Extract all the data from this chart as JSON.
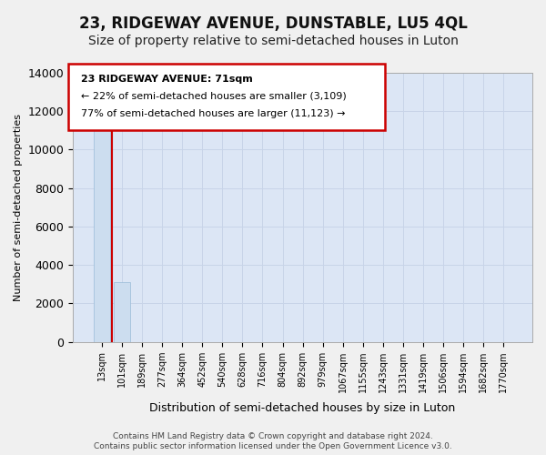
{
  "title": "23, RIDGEWAY AVENUE, DUNSTABLE, LU5 4QL",
  "subtitle": "Size of property relative to semi-detached houses in Luton",
  "xlabel": "Distribution of semi-detached houses by size in Luton",
  "ylabel": "Number of semi-detached properties",
  "footer1": "Contains HM Land Registry data © Crown copyright and database right 2024.",
  "footer2": "Contains public sector information licensed under the Open Government Licence v3.0.",
  "bar_values": [
    11500,
    3109,
    0,
    0,
    0,
    0,
    0,
    0,
    0,
    0,
    0,
    0,
    0,
    0,
    0,
    0,
    0,
    0,
    0,
    0,
    0
  ],
  "bar_color": "#ccddef",
  "bar_edge_color": "#99bbd8",
  "categories": [
    "13sqm",
    "101sqm",
    "189sqm",
    "277sqm",
    "364sqm",
    "452sqm",
    "540sqm",
    "628sqm",
    "716sqm",
    "804sqm",
    "892sqm",
    "979sqm",
    "1067sqm",
    "1155sqm",
    "1243sqm",
    "1331sqm",
    "1419sqm",
    "1506sqm",
    "1594sqm",
    "1682sqm",
    "1770sqm"
  ],
  "ylim": [
    0,
    14000
  ],
  "yticks": [
    0,
    2000,
    4000,
    6000,
    8000,
    10000,
    12000,
    14000
  ],
  "property_line_x": 0.5,
  "annotation_text_line1": "23 RIDGEWAY AVENUE: 71sqm",
  "annotation_text_line2": "← 22% of semi-detached houses are smaller (3,109)",
  "annotation_text_line3": "77% of semi-detached houses are larger (11,123) →",
  "annotation_box_color": "#ffffff",
  "annotation_border_color": "#cc0000",
  "red_line_color": "#cc0000",
  "grid_color": "#c8d4e8",
  "background_color": "#dce6f5",
  "title_fontsize": 12,
  "subtitle_fontsize": 10
}
